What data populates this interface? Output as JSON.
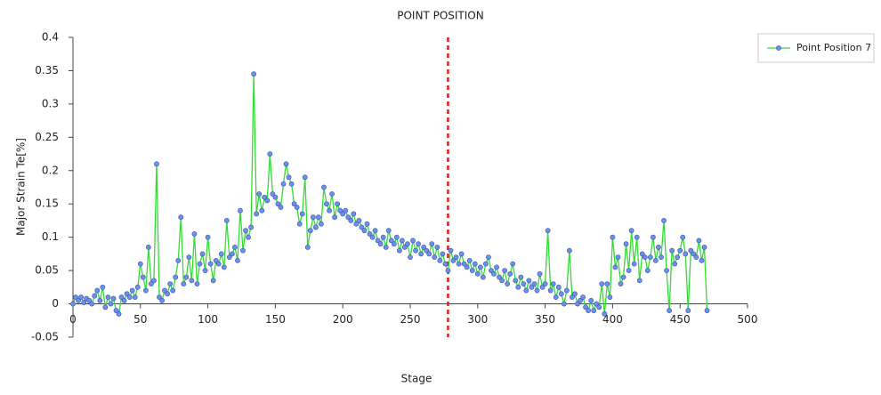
{
  "chart_data": {
    "type": "line",
    "title": "POINT POSITION",
    "x_label": "Stage",
    "y_label": "Major Strain Te[%]",
    "x": [
      0,
      2,
      4,
      6,
      8,
      10,
      12,
      14,
      16,
      18,
      20,
      22,
      24,
      26,
      28,
      30,
      32,
      34,
      36,
      38,
      40,
      42,
      44,
      46,
      48,
      50,
      52,
      54,
      56,
      58,
      60,
      62,
      64,
      66,
      68,
      70,
      72,
      74,
      76,
      78,
      80,
      82,
      84,
      86,
      88,
      90,
      92,
      94,
      96,
      98,
      100,
      102,
      104,
      106,
      108,
      110,
      112,
      114,
      116,
      118,
      120,
      122,
      124,
      126,
      128,
      130,
      132,
      134,
      136,
      138,
      140,
      142,
      144,
      146,
      148,
      150,
      152,
      154,
      156,
      158,
      160,
      162,
      164,
      166,
      168,
      170,
      172,
      174,
      176,
      178,
      180,
      182,
      184,
      186,
      188,
      190,
      192,
      194,
      196,
      198,
      200,
      202,
      204,
      206,
      208,
      210,
      212,
      214,
      216,
      218,
      220,
      222,
      224,
      226,
      228,
      230,
      232,
      234,
      236,
      238,
      240,
      242,
      244,
      246,
      248,
      250,
      252,
      254,
      256,
      258,
      260,
      262,
      264,
      266,
      268,
      270,
      272,
      274,
      276,
      278,
      280,
      282,
      284,
      286,
      288,
      290,
      292,
      294,
      296,
      298,
      300,
      302,
      304,
      306,
      308,
      310,
      312,
      314,
      316,
      318,
      320,
      322,
      324,
      326,
      328,
      330,
      332,
      334,
      336,
      338,
      340,
      342,
      344,
      346,
      348,
      350,
      352,
      354,
      356,
      358,
      360,
      362,
      364,
      366,
      368,
      370,
      372,
      374,
      376,
      378,
      380,
      382,
      384,
      386,
      388,
      390,
      392,
      394,
      396,
      398,
      400,
      402,
      404,
      406,
      408,
      410,
      412,
      414,
      416,
      418,
      420,
      422,
      424,
      426,
      428,
      430,
      432,
      434,
      436,
      438,
      440,
      442,
      444,
      446,
      448,
      450,
      452,
      454,
      456,
      458,
      460,
      462,
      464,
      466,
      468,
      470
    ],
    "series": [
      {
        "name": "Point Position 7",
        "color": "#33dd33",
        "marker_color": "#6f8fe8",
        "values": [
          0,
          0.01,
          0.005,
          0.01,
          0.002,
          0.008,
          0.005,
          0,
          0.012,
          0.02,
          0.005,
          0.025,
          -0.005,
          0.01,
          0,
          0.008,
          -0.01,
          -0.015,
          0.01,
          0.005,
          0.015,
          0.01,
          0.02,
          0.01,
          0.025,
          0.06,
          0.04,
          0.02,
          0.085,
          0.03,
          0.035,
          0.21,
          0.01,
          0.005,
          0.02,
          0.015,
          0.03,
          0.02,
          0.04,
          0.065,
          0.13,
          0.03,
          0.04,
          0.07,
          0.035,
          0.105,
          0.03,
          0.06,
          0.075,
          0.05,
          0.1,
          0.06,
          0.035,
          0.065,
          0.06,
          0.075,
          0.055,
          0.125,
          0.07,
          0.075,
          0.085,
          0.065,
          0.14,
          0.08,
          0.11,
          0.1,
          0.115,
          0.345,
          0.135,
          0.165,
          0.14,
          0.16,
          0.155,
          0.225,
          0.165,
          0.16,
          0.15,
          0.145,
          0.18,
          0.21,
          0.19,
          0.18,
          0.15,
          0.145,
          0.12,
          0.135,
          0.19,
          0.085,
          0.11,
          0.13,
          0.115,
          0.13,
          0.12,
          0.175,
          0.15,
          0.14,
          0.165,
          0.13,
          0.15,
          0.14,
          0.135,
          0.14,
          0.13,
          0.125,
          0.135,
          0.12,
          0.125,
          0.115,
          0.11,
          0.12,
          0.105,
          0.1,
          0.11,
          0.095,
          0.09,
          0.1,
          0.085,
          0.11,
          0.095,
          0.09,
          0.1,
          0.08,
          0.095,
          0.085,
          0.09,
          0.07,
          0.095,
          0.08,
          0.09,
          0.075,
          0.085,
          0.08,
          0.075,
          0.09,
          0.07,
          0.085,
          0.065,
          0.075,
          0.06,
          0.05,
          0.08,
          0.065,
          0.07,
          0.06,
          0.075,
          0.06,
          0.055,
          0.065,
          0.05,
          0.06,
          0.045,
          0.055,
          0.04,
          0.06,
          0.07,
          0.05,
          0.045,
          0.055,
          0.04,
          0.035,
          0.05,
          0.03,
          0.045,
          0.06,
          0.035,
          0.025,
          0.04,
          0.03,
          0.02,
          0.035,
          0.025,
          0.03,
          0.02,
          0.045,
          0.025,
          0.03,
          0.11,
          0.02,
          0.03,
          0.01,
          0.025,
          0.015,
          0,
          0.02,
          0.08,
          0.01,
          0.015,
          0,
          0.005,
          0.01,
          -0.005,
          -0.01,
          0.005,
          -0.01,
          0,
          -0.005,
          0.03,
          -0.015,
          0.03,
          0.01,
          0.1,
          0.055,
          0.07,
          0.03,
          0.04,
          0.09,
          0.05,
          0.11,
          0.06,
          0.1,
          0.035,
          0.075,
          0.07,
          0.05,
          0.07,
          0.1,
          0.065,
          0.085,
          0.07,
          0.125,
          0.05,
          -0.01,
          0.08,
          0.06,
          0.07,
          0.08,
          0.1,
          0.075,
          -0.01,
          0.08,
          0.075,
          0.07,
          0.095,
          0.065,
          0.085,
          -0.01
        ]
      }
    ],
    "xlim": [
      0,
      500
    ],
    "xticks": [
      0,
      50,
      100,
      150,
      200,
      250,
      300,
      350,
      400,
      450,
      500
    ],
    "ylim": [
      -0.05,
      0.4
    ],
    "yticks": [
      -0.05,
      0,
      0.05,
      0.1,
      0.15,
      0.2,
      0.25,
      0.3,
      0.35,
      0.4
    ],
    "grid": false,
    "legend": "right",
    "vline": {
      "x": 278,
      "color": "#e02020"
    }
  }
}
